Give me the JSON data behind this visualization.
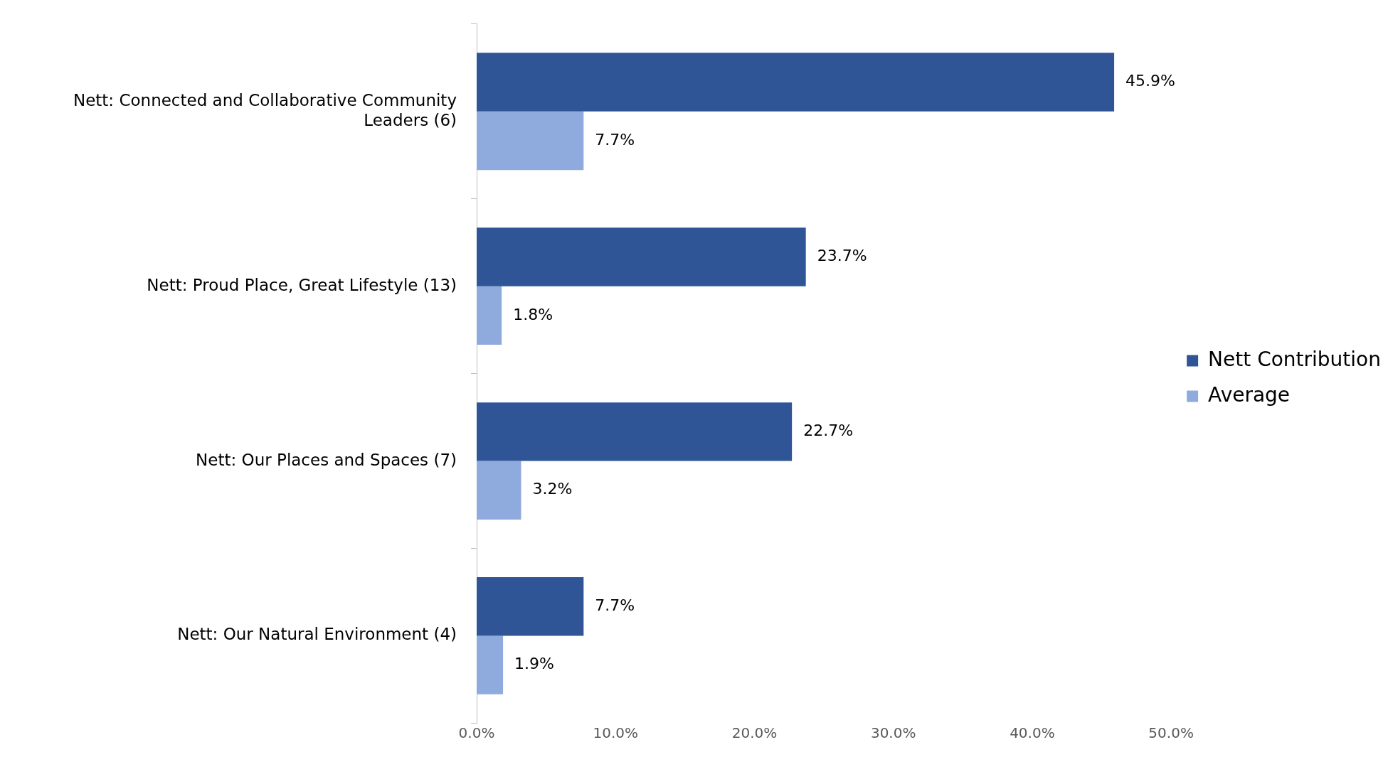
{
  "chart_data": {
    "type": "bar",
    "orientation": "horizontal",
    "categories": [
      "Nett: Connected and Collaborative Community Leaders (6)",
      "Nett: Proud Place, Great Lifestyle (13)",
      "Nett: Our Places and Spaces (7)",
      "Nett: Our Natural Environment (4)"
    ],
    "series": [
      {
        "name": "Nett Contribution",
        "color": "#2f5597",
        "values": [
          45.9,
          23.7,
          22.7,
          7.7
        ],
        "value_labels": [
          "45.9%",
          "23.7%",
          "22.7%",
          "7.7%"
        ]
      },
      {
        "name": "Average",
        "color": "#8faadc",
        "values": [
          7.7,
          1.8,
          3.2,
          1.9
        ],
        "value_labels": [
          "7.7%",
          "1.8%",
          "3.2%",
          "1.9%"
        ]
      }
    ],
    "xlim": [
      0,
      50
    ],
    "xticks": [
      {
        "value": 0,
        "label": "0.0%"
      },
      {
        "value": 10,
        "label": "10.0%"
      },
      {
        "value": 20,
        "label": "20.0%"
      },
      {
        "value": 30,
        "label": "30.0%"
      },
      {
        "value": 40,
        "label": "40.0%"
      },
      {
        "value": 50,
        "label": "50.0%"
      }
    ],
    "legend": "right"
  }
}
